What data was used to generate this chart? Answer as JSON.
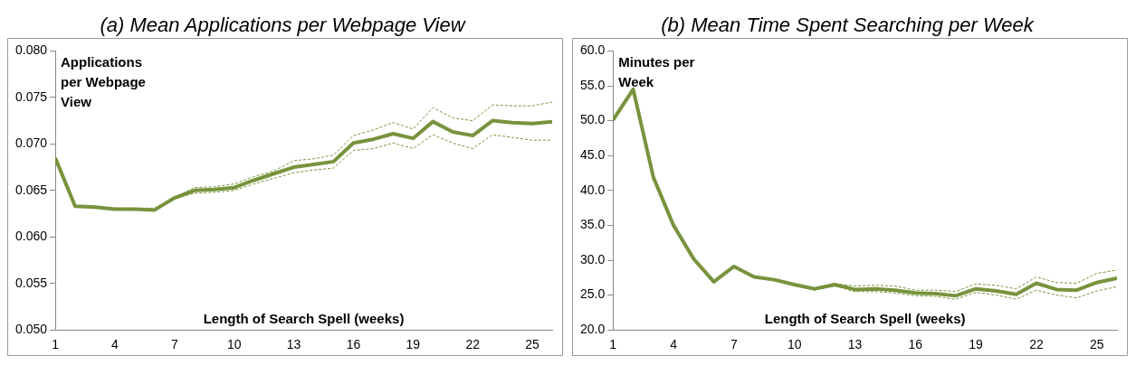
{
  "chart_data": [
    {
      "type": "line",
      "title": "(a) Mean Applications per Webpage View",
      "xlabel": "Length of Search Spell (weeks)",
      "ylabel": "Applications per Webpage View",
      "x": [
        1,
        2,
        3,
        4,
        5,
        6,
        7,
        8,
        9,
        10,
        11,
        12,
        13,
        14,
        15,
        16,
        17,
        18,
        19,
        20,
        21,
        22,
        23,
        24,
        25,
        26
      ],
      "series": [
        {
          "color": "#77933c",
          "line_style": "solid",
          "values": [
            0.0685,
            0.0633,
            0.0632,
            0.063,
            0.063,
            0.0629,
            0.0642,
            0.065,
            0.0651,
            0.0653,
            0.0661,
            0.0668,
            0.0675,
            0.0678,
            0.0681,
            0.0701,
            0.0705,
            0.0711,
            0.0706,
            0.0724,
            0.0713,
            0.0709,
            0.0725,
            0.0723,
            0.0722,
            0.0724
          ]
        },
        {
          "color": "#77933c",
          "line_style": "dashed",
          "values": [
            0.0685,
            0.0634,
            0.0632,
            0.0631,
            0.0631,
            0.0631,
            0.0643,
            0.0653,
            0.0654,
            0.0657,
            0.0665,
            0.0671,
            0.0682,
            0.0684,
            0.0688,
            0.0709,
            0.0715,
            0.0723,
            0.0716,
            0.0739,
            0.0728,
            0.0725,
            0.0742,
            0.0741,
            0.0741,
            0.0745
          ]
        },
        {
          "color": "#77933c",
          "line_style": "dashed",
          "values": [
            0.0685,
            0.0633,
            0.0631,
            0.063,
            0.063,
            0.0628,
            0.0641,
            0.0647,
            0.0648,
            0.065,
            0.0657,
            0.0663,
            0.0669,
            0.0672,
            0.0674,
            0.0693,
            0.0695,
            0.0701,
            0.0695,
            0.071,
            0.0701,
            0.0695,
            0.071,
            0.0707,
            0.0704,
            0.0704
          ]
        }
      ],
      "xlim": [
        1,
        26
      ],
      "xticks": [
        1,
        4,
        7,
        10,
        13,
        16,
        19,
        22,
        25
      ],
      "ylim": [
        0.05,
        0.08
      ],
      "yticks": [
        {
          "value": 0.05,
          "label": "0.050"
        },
        {
          "value": 0.055,
          "label": "0.055"
        },
        {
          "value": 0.06,
          "label": "0.060"
        },
        {
          "value": 0.065,
          "label": "0.065"
        },
        {
          "value": 0.07,
          "label": "0.070"
        },
        {
          "value": 0.075,
          "label": "0.075"
        },
        {
          "value": 0.08,
          "label": "0.080"
        }
      ],
      "grid": false,
      "legend": false,
      "marker": "none"
    },
    {
      "type": "line",
      "title": "(b) Mean Time Spent Searching per Week",
      "xlabel": "Length of Search Spell (weeks)",
      "ylabel": "Minutes per Week",
      "x": [
        1,
        2,
        3,
        4,
        5,
        6,
        7,
        8,
        9,
        10,
        11,
        12,
        13,
        14,
        15,
        16,
        17,
        18,
        19,
        20,
        21,
        22,
        23,
        24,
        25,
        26
      ],
      "series": [
        {
          "color": "#77933c",
          "line_style": "solid",
          "values": [
            50.1,
            54.5,
            41.9,
            35.0,
            30.2,
            26.9,
            29.1,
            27.6,
            27.2,
            26.5,
            25.9,
            26.5,
            25.8,
            25.9,
            25.7,
            25.3,
            25.2,
            24.9,
            25.9,
            25.6,
            25.1,
            26.7,
            25.8,
            25.7,
            26.8,
            27.4
          ]
        },
        {
          "color": "#77933c",
          "line_style": "dashed",
          "values": [
            50.1,
            54.5,
            41.9,
            35.0,
            30.2,
            26.9,
            29.1,
            27.6,
            27.2,
            26.6,
            26.0,
            26.6,
            26.3,
            26.4,
            26.3,
            25.7,
            25.7,
            25.5,
            26.6,
            26.4,
            25.9,
            27.6,
            26.8,
            26.7,
            28.1,
            28.6
          ]
        },
        {
          "color": "#77933c",
          "line_style": "dashed",
          "values": [
            50.1,
            54.5,
            41.9,
            35.0,
            30.2,
            26.9,
            29.1,
            27.6,
            27.1,
            26.3,
            25.7,
            26.3,
            25.5,
            25.5,
            25.3,
            24.9,
            24.8,
            24.4,
            25.4,
            25.0,
            24.4,
            25.7,
            25.0,
            24.6,
            25.6,
            26.2
          ]
        }
      ],
      "xlim": [
        1,
        26
      ],
      "xticks": [
        1,
        4,
        7,
        10,
        13,
        16,
        19,
        22,
        25
      ],
      "ylim": [
        20,
        60
      ],
      "yticks": [
        {
          "value": 20,
          "label": "20.0"
        },
        {
          "value": 25,
          "label": "25.0"
        },
        {
          "value": 30,
          "label": "30.0"
        },
        {
          "value": 35,
          "label": "35.0"
        },
        {
          "value": 40,
          "label": "40.0"
        },
        {
          "value": 45,
          "label": "45.0"
        },
        {
          "value": 50,
          "label": "50.0"
        },
        {
          "value": 55,
          "label": "55.0"
        },
        {
          "value": 60,
          "label": "60.0"
        }
      ],
      "grid": false,
      "legend": false,
      "marker": "none"
    }
  ]
}
